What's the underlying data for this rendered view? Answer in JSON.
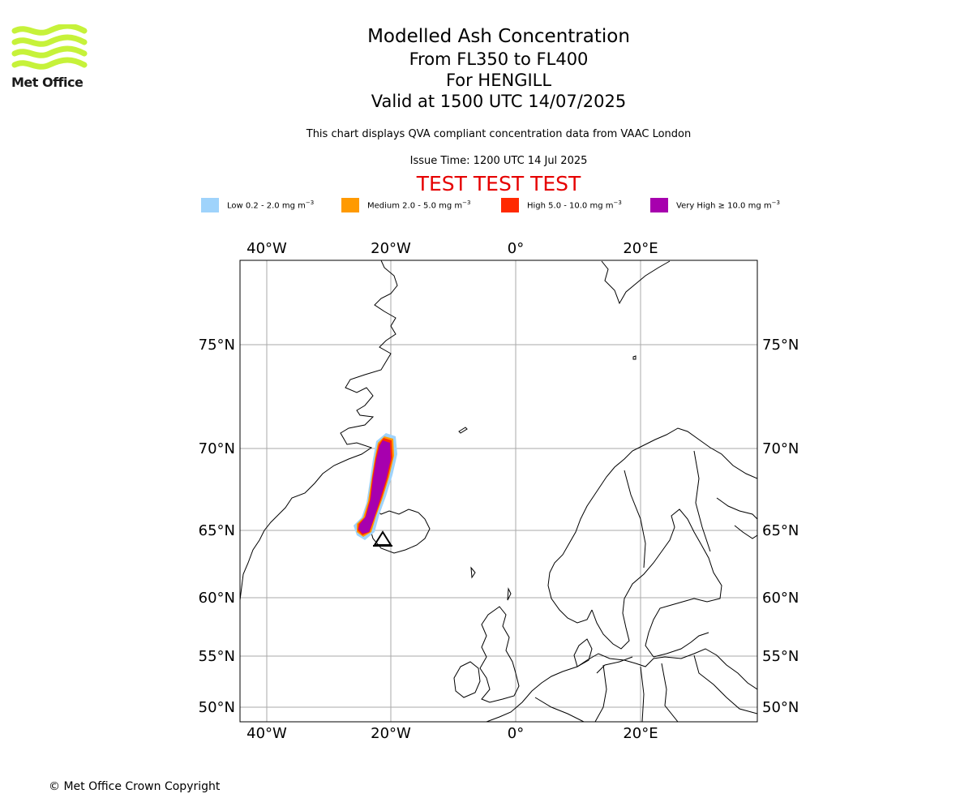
{
  "logo": {
    "name": "Met Office"
  },
  "title": {
    "line1": "Modelled Ash Concentration",
    "line2": "From FL350 to FL400",
    "line3": "For HENGILL",
    "line4": "Valid at 1500 UTC 14/07/2025"
  },
  "subtitle": "This chart displays QVA compliant concentration data from VAAC London",
  "issue_time": "Issue Time: 1200 UTC 14 Jul 2025",
  "test_banner": "TEST TEST TEST",
  "legend": [
    {
      "label": "Low 0.2 - 2.0 mg m",
      "color": "#9fd3fb"
    },
    {
      "label": "Medium 2.0 - 5.0 mg m",
      "color": "#ff9a00"
    },
    {
      "label": "High 5.0 - 10.0 mg m",
      "color": "#ff2a00"
    },
    {
      "label": "Very High  ≥  10.0 mg m",
      "color": "#a700ae"
    }
  ],
  "legend_unit_exponent": "−3",
  "map": {
    "lon_ticks": [
      "40°W",
      "20°W",
      "0°",
      "20°E"
    ],
    "lat_ticks": [
      "75°N",
      "70°N",
      "65°N",
      "60°N",
      "55°N",
      "50°N"
    ],
    "grid_color": "#aaaaaa"
  },
  "copyright": "© Met Office Crown Copyright"
}
